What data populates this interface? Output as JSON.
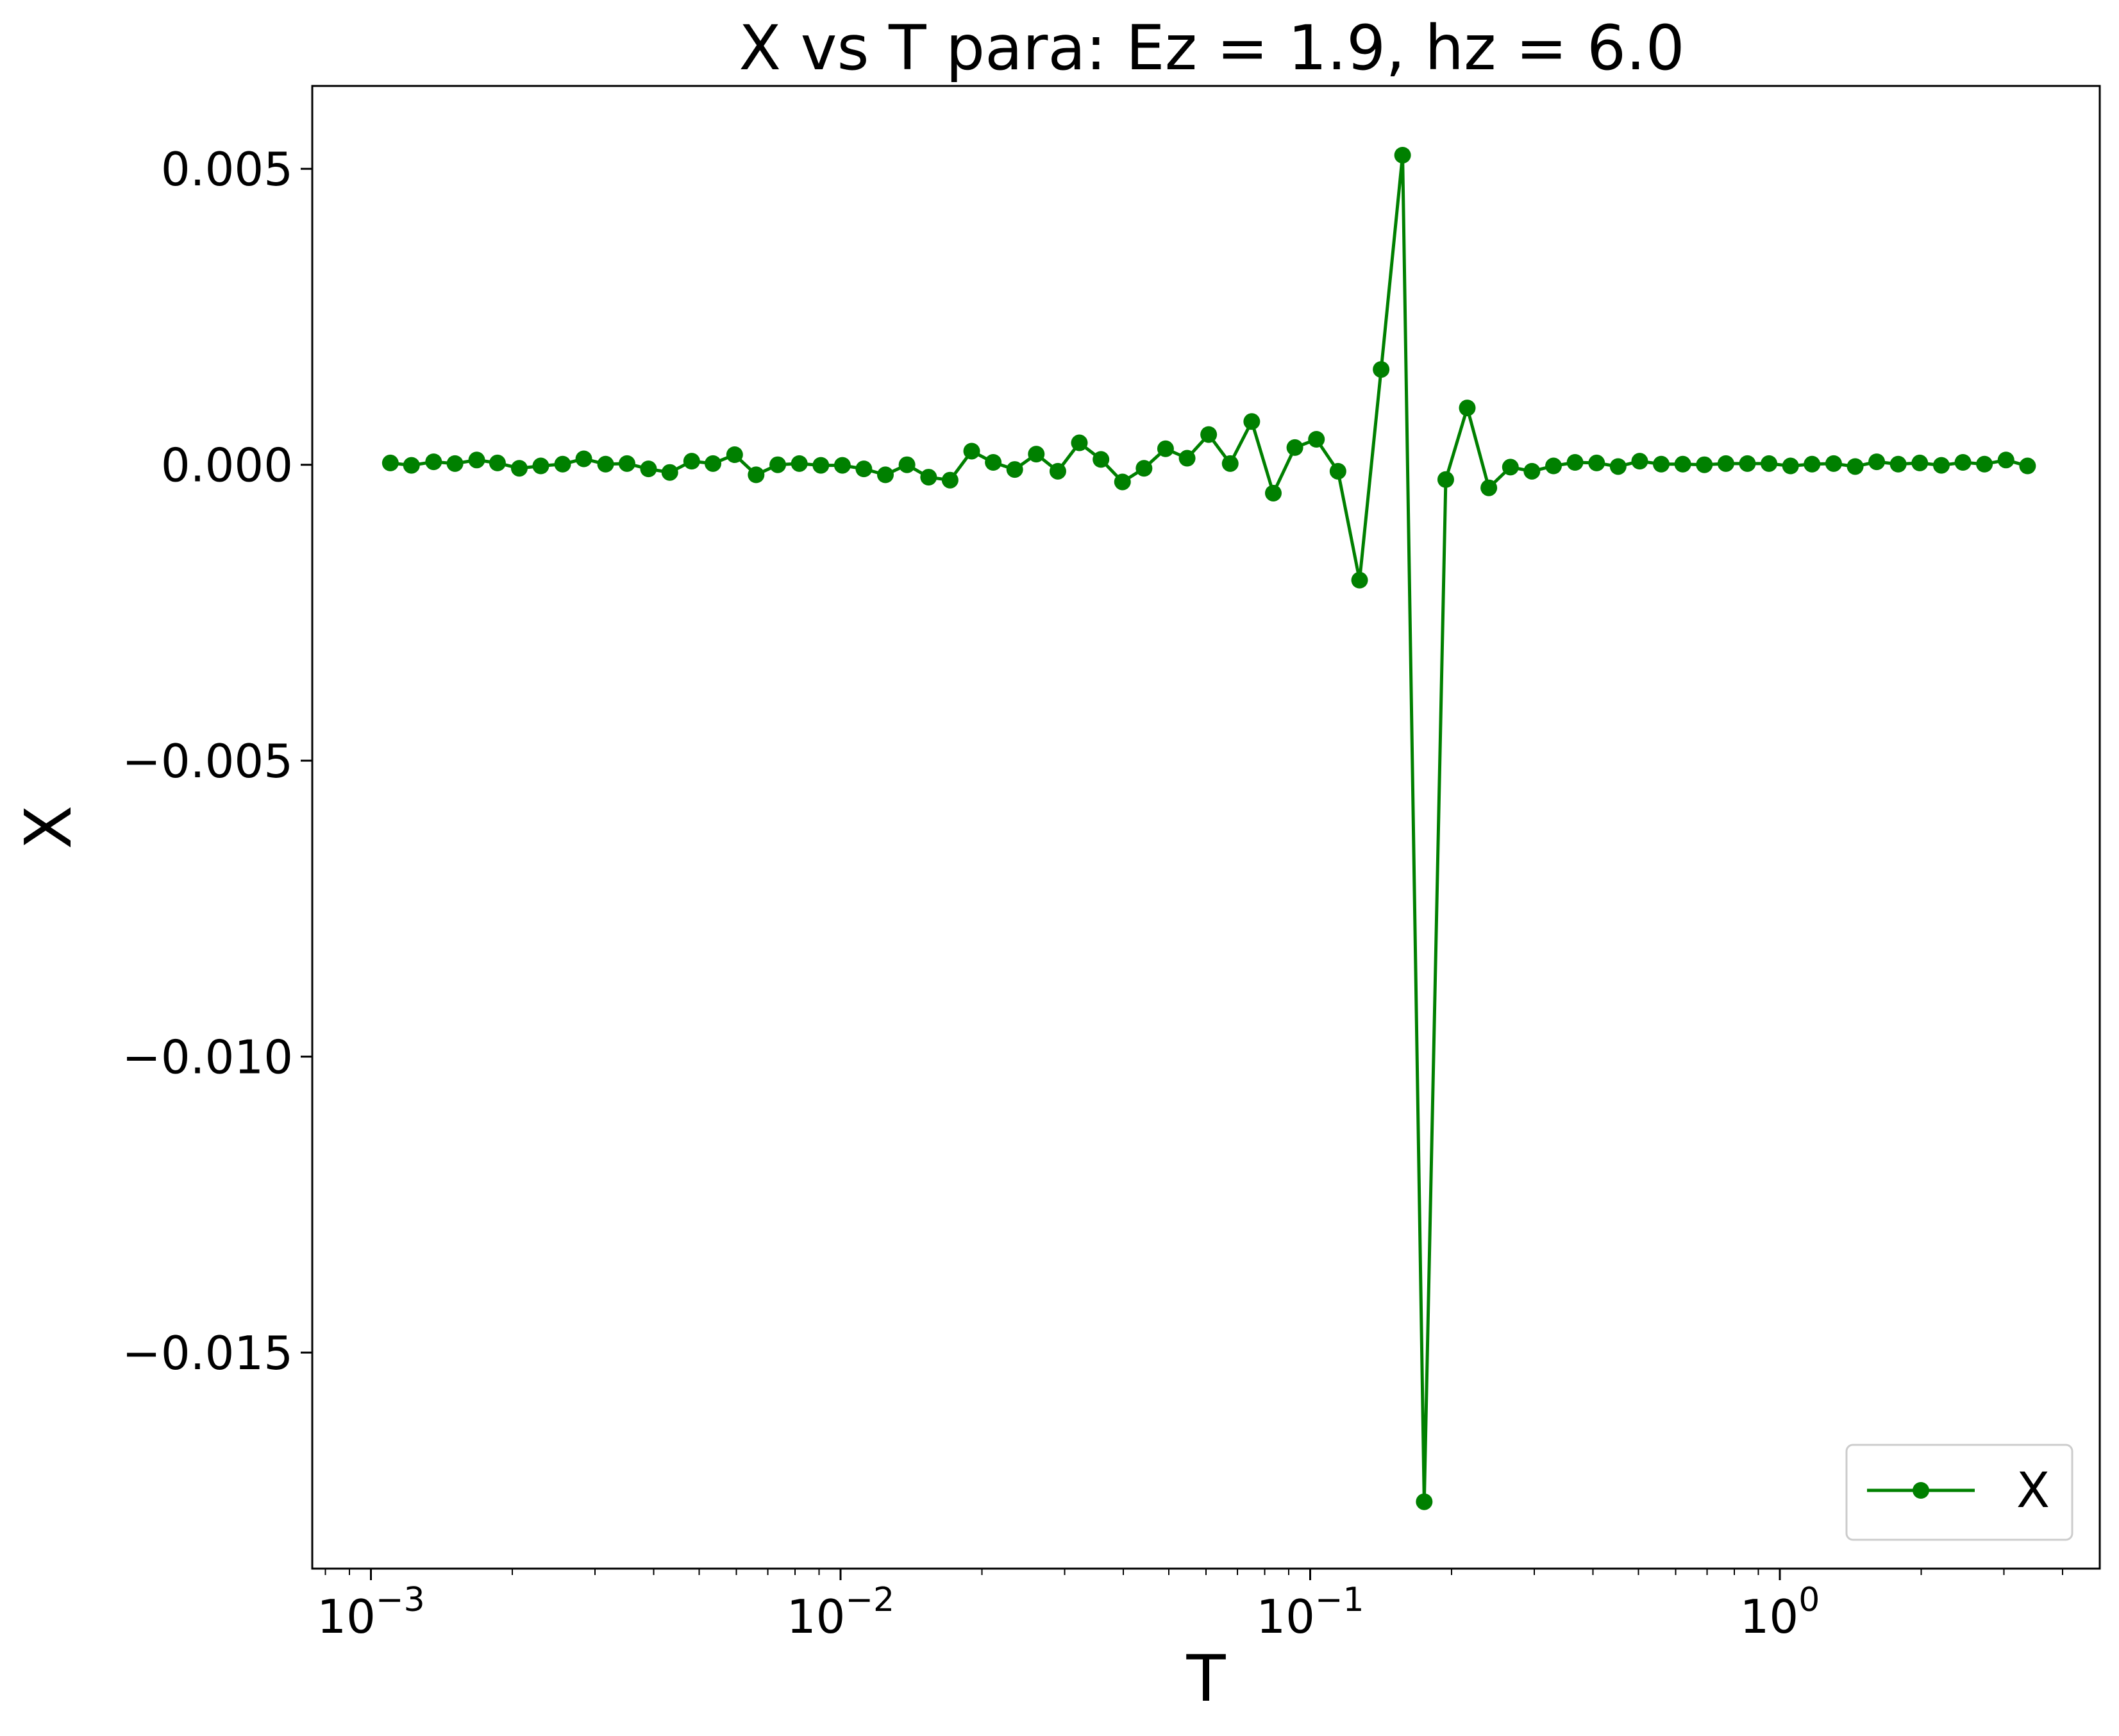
{
  "chart_data": {
    "type": "line",
    "title": "X vs T para: Ez = 1.9, hz = 6.0",
    "xlabel": "T",
    "ylabel": "X",
    "xscale": "log",
    "xlim": [
      0.00075,
      4.8
    ],
    "ylim": [
      -0.01865,
      0.0064
    ],
    "grid": false,
    "legend_position": "lower right",
    "x_ticks": [
      {
        "base": "10",
        "exp": "−3",
        "value": 0.001
      },
      {
        "base": "10",
        "exp": "−2",
        "value": 0.01
      },
      {
        "base": "10",
        "exp": "−1",
        "value": 0.1
      },
      {
        "base": "10",
        "exp": "0",
        "value": 1
      }
    ],
    "y_ticks": [
      {
        "label": "0.005",
        "value": 0.005
      },
      {
        "label": "0.000",
        "value": 0.0
      },
      {
        "label": "−0.005",
        "value": -0.005
      },
      {
        "label": "−0.010",
        "value": -0.01
      },
      {
        "label": "−0.015",
        "value": -0.015
      }
    ],
    "series": [
      {
        "name": "X",
        "color": "#008000",
        "marker": "circle",
        "x": [
          0.0011,
          0.00122,
          0.00136,
          0.00151,
          0.00168,
          0.00186,
          0.00207,
          0.0023,
          0.00256,
          0.00284,
          0.00316,
          0.00351,
          0.0039,
          0.00433,
          0.00482,
          0.00535,
          0.00595,
          0.00661,
          0.00735,
          0.00817,
          0.00908,
          0.01009,
          0.01121,
          0.01246,
          0.01385,
          0.0154,
          0.01711,
          0.01902,
          0.02114,
          0.02349,
          0.02611,
          0.02902,
          0.03225,
          0.03585,
          0.03984,
          0.04428,
          0.04921,
          0.0547,
          0.06079,
          0.06756,
          0.07509,
          0.08346,
          0.09276,
          0.1031,
          0.1146,
          0.1274,
          0.1416,
          0.1573,
          0.1749,
          0.1944,
          0.216,
          0.2401,
          0.2669,
          0.2966,
          0.3297,
          0.3664,
          0.4073,
          0.4526,
          0.5031,
          0.5591,
          0.6214,
          0.6907,
          0.7676,
          0.8531,
          0.9482,
          1.054,
          1.171,
          1.302,
          1.447,
          1.608,
          1.787,
          1.986,
          2.208,
          2.454,
          2.727,
          3.031,
          3.369
        ],
        "y": [
          3e-05,
          -1e-05,
          5e-05,
          2e-05,
          8e-05,
          3e-05,
          -6e-05,
          -2e-05,
          1e-05,
          0.0001,
          1e-05,
          2e-05,
          -7e-05,
          -0.00013,
          6e-05,
          2e-05,
          0.00017,
          -0.00017,
          0.0,
          2e-05,
          -1e-05,
          -1e-05,
          -7e-05,
          -0.00017,
          0.0,
          -0.00021,
          -0.00026,
          0.00023,
          4e-05,
          -8e-05,
          0.00018,
          -0.00011,
          0.00037,
          9e-05,
          -0.00029,
          -6e-05,
          0.00027,
          0.00011,
          0.00051,
          2e-05,
          0.00073,
          -0.00048,
          0.00029,
          0.00043,
          -0.00011,
          -0.00195,
          0.00161,
          0.00523,
          -0.01752,
          -0.00025,
          0.00096,
          -0.00039,
          -4e-05,
          -0.00011,
          -2e-05,
          4e-05,
          3e-05,
          -3e-05,
          6e-05,
          1e-05,
          1e-05,
          0.0,
          2e-05,
          2e-05,
          2e-05,
          -2e-05,
          1e-05,
          2e-05,
          -3e-05,
          5e-05,
          1e-05,
          3e-05,
          -1e-05,
          4e-05,
          1e-05,
          8e-05,
          -2e-05
        ]
      }
    ]
  }
}
